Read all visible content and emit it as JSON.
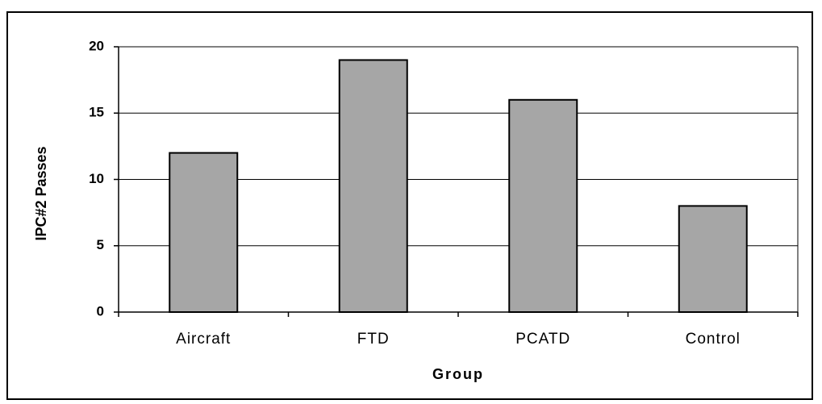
{
  "chart_data": {
    "type": "bar",
    "title": "",
    "xlabel": "Group",
    "ylabel": "IPC#2 Passes",
    "categories": [
      "Aircraft",
      "FTD",
      "PCATD",
      "Control"
    ],
    "values": [
      12,
      19,
      16,
      8
    ],
    "ylim": [
      0,
      20
    ],
    "yticks": [
      0,
      5,
      10,
      15,
      20
    ],
    "grid": true,
    "legend": "none",
    "bar_color": "#a6a6a6",
    "bar_edge_color": "#000000",
    "grid_color": "#000000"
  }
}
